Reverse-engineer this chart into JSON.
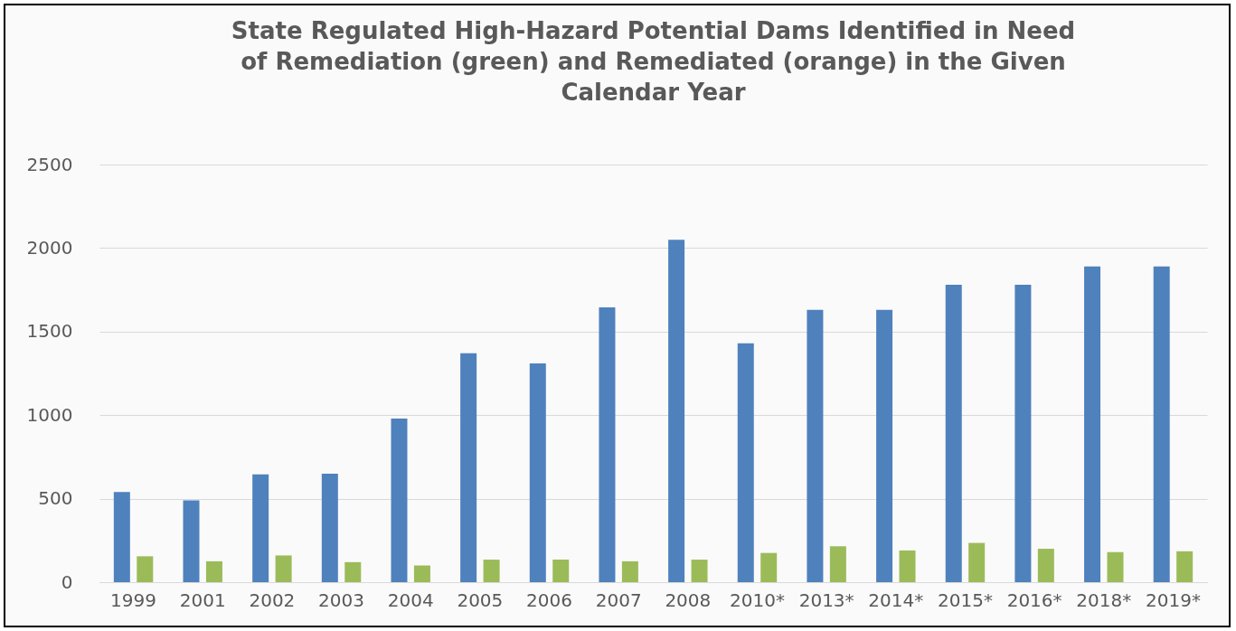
{
  "chart_data": {
    "type": "bar",
    "title": "State Regulated High-Hazard Potential Dams Identified in Need of Remediation (green) and Remediated (orange) in the Given Calendar Year",
    "categories": [
      "1999",
      "2001",
      "2002",
      "2003",
      "2004",
      "2005",
      "2006",
      "2007",
      "2008",
      "2010*",
      "2013*",
      "2014*",
      "2015*",
      "2016*",
      "2018*",
      "2019*"
    ],
    "series": [
      {
        "color": "#4f81bd",
        "values": [
          540,
          490,
          645,
          650,
          980,
          1370,
          1310,
          1645,
          2050,
          1430,
          1630,
          1630,
          1780,
          1780,
          1890,
          1890
        ]
      },
      {
        "color": "#9bbb59",
        "values": [
          155,
          125,
          160,
          120,
          100,
          135,
          135,
          125,
          135,
          175,
          215,
          190,
          235,
          200,
          180,
          185
        ]
      }
    ],
    "ylim": [
      0,
      2500
    ],
    "yticks": [
      0,
      500,
      1000,
      1500,
      2000,
      2500
    ],
    "grid": "y",
    "legend": false
  }
}
